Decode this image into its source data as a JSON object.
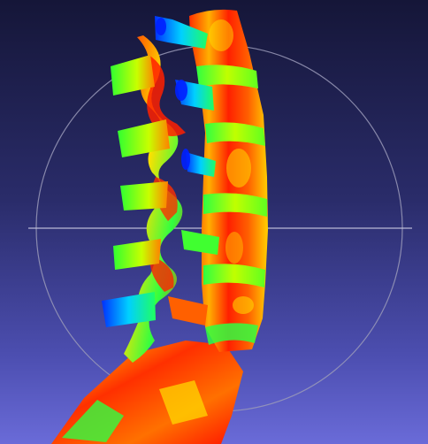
{
  "viewer": {
    "background_top": "#151638",
    "background_bottom": "#6a6bd8",
    "trackball_color": "#9a9ab8"
  },
  "model": {
    "subject": "lumbar-spine-mesh",
    "colormap": [
      "#0020ff",
      "#00e0ff",
      "#20ff40",
      "#f0ff00",
      "#ff8000",
      "#ff1000"
    ]
  }
}
